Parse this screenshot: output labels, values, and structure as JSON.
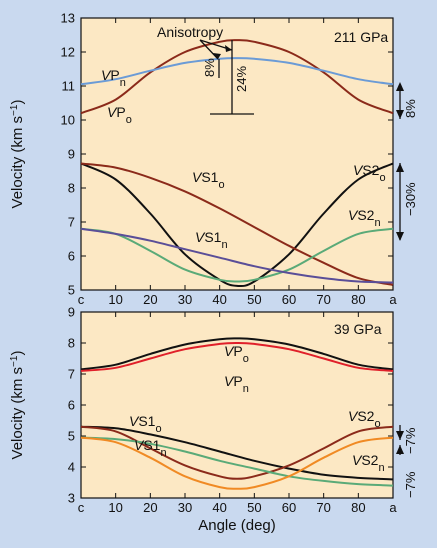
{
  "colors": {
    "figure_bg": "#c9d9ef",
    "plot_bg": "#fce8c4",
    "black": "#111111",
    "darkred": "#8b2a1a",
    "blue": "#6b9bd6",
    "green": "#5aaa78",
    "purple": "#5a4e98",
    "red": "#e0202a",
    "orange": "#f08a24"
  },
  "x_axis": {
    "label": "Angle (deg)",
    "ticks": [
      "c",
      "10",
      "20",
      "30",
      "40",
      "50",
      "60",
      "70",
      "80",
      "a"
    ],
    "tick_values": [
      0,
      10,
      20,
      30,
      40,
      50,
      60,
      70,
      80,
      90
    ]
  },
  "chart_data": [
    {
      "type": "line",
      "title": "211 GPa",
      "xlabel": "",
      "ylabel": "Velocity (km s⁻¹)",
      "xlim": [
        0,
        90
      ],
      "ylim": [
        5,
        13
      ],
      "yticks": [
        "5",
        "6",
        "7",
        "8",
        "9",
        "10",
        "11",
        "12",
        "13"
      ],
      "grid": false,
      "series": [
        {
          "name": "VPo",
          "color": "darkred",
          "x": [
            0,
            10,
            20,
            30,
            40,
            45,
            50,
            60,
            70,
            80,
            90
          ],
          "y": [
            10.2,
            10.6,
            11.4,
            12.0,
            12.3,
            12.35,
            12.3,
            12.0,
            11.4,
            10.6,
            10.2
          ]
        },
        {
          "name": "VPn",
          "color": "blue",
          "x": [
            0,
            10,
            20,
            30,
            40,
            45,
            50,
            60,
            70,
            80,
            90
          ],
          "y": [
            11.05,
            11.2,
            11.45,
            11.68,
            11.8,
            11.82,
            11.8,
            11.68,
            11.45,
            11.2,
            11.05
          ]
        },
        {
          "name": "VS2o",
          "color": "black",
          "x": [
            0,
            10,
            20,
            30,
            40,
            45,
            50,
            60,
            70,
            80,
            90
          ],
          "y": [
            8.72,
            8.25,
            7.25,
            6.05,
            5.3,
            5.12,
            5.25,
            6.05,
            7.25,
            8.25,
            8.72
          ]
        },
        {
          "name": "VS1o",
          "color": "darkred",
          "x": [
            0,
            10,
            20,
            30,
            40,
            50,
            60,
            70,
            80,
            90
          ],
          "y": [
            8.72,
            8.6,
            8.3,
            7.9,
            7.4,
            6.85,
            6.3,
            5.8,
            5.35,
            5.15
          ]
        },
        {
          "name": "VS2n",
          "color": "green",
          "x": [
            0,
            10,
            20,
            30,
            40,
            45,
            50,
            60,
            70,
            80,
            90
          ],
          "y": [
            6.8,
            6.65,
            6.15,
            5.6,
            5.3,
            5.25,
            5.3,
            5.6,
            6.15,
            6.65,
            6.8
          ]
        },
        {
          "name": "VS1n",
          "color": "purple",
          "x": [
            0,
            10,
            20,
            30,
            40,
            50,
            60,
            70,
            80,
            90
          ],
          "y": [
            6.8,
            6.65,
            6.45,
            6.2,
            5.95,
            5.7,
            5.5,
            5.35,
            5.25,
            5.22
          ]
        }
      ],
      "annotations": {
        "pressure": "211 GPa",
        "anisotropy": "Anisotropy",
        "pct_a": "8%",
        "pct_b": "24%",
        "right_top": "8%",
        "right_bottom": "−30%"
      }
    },
    {
      "type": "line",
      "title": "39 GPa",
      "xlabel": "Angle (deg)",
      "ylabel": "Velocity (km s⁻¹)",
      "xlim": [
        0,
        90
      ],
      "ylim": [
        3,
        9
      ],
      "yticks": [
        "3",
        "4",
        "5",
        "6",
        "7",
        "8",
        "9"
      ],
      "grid": false,
      "series": [
        {
          "name": "VPo",
          "color": "black",
          "x": [
            0,
            10,
            20,
            30,
            40,
            45,
            50,
            60,
            70,
            80,
            90
          ],
          "y": [
            7.15,
            7.3,
            7.65,
            7.95,
            8.12,
            8.15,
            8.12,
            7.95,
            7.65,
            7.3,
            7.15
          ]
        },
        {
          "name": "VPn",
          "color": "red",
          "x": [
            0,
            10,
            20,
            30,
            40,
            45,
            50,
            60,
            70,
            80,
            90
          ],
          "y": [
            7.1,
            7.2,
            7.5,
            7.8,
            7.97,
            8.0,
            7.97,
            7.8,
            7.5,
            7.2,
            7.1
          ]
        },
        {
          "name": "VS1o",
          "color": "black",
          "x": [
            0,
            10,
            20,
            30,
            40,
            50,
            60,
            70,
            80,
            90
          ],
          "y": [
            5.3,
            5.25,
            5.05,
            4.8,
            4.5,
            4.2,
            3.95,
            3.75,
            3.65,
            3.6
          ]
        },
        {
          "name": "VS2o",
          "color": "darkred",
          "x": [
            0,
            10,
            20,
            30,
            40,
            45,
            50,
            60,
            70,
            80,
            90
          ],
          "y": [
            5.3,
            5.15,
            4.6,
            4.05,
            3.7,
            3.62,
            3.7,
            4.05,
            4.6,
            5.15,
            5.3
          ]
        },
        {
          "name": "VS1n",
          "color": "green",
          "x": [
            0,
            10,
            20,
            30,
            40,
            50,
            60,
            70,
            80,
            90
          ],
          "y": [
            4.95,
            4.9,
            4.75,
            4.5,
            4.2,
            3.95,
            3.7,
            3.55,
            3.45,
            3.4
          ]
        },
        {
          "name": "VS2n",
          "color": "orange",
          "x": [
            0,
            10,
            20,
            30,
            40,
            45,
            50,
            60,
            70,
            80,
            90
          ],
          "y": [
            4.95,
            4.8,
            4.3,
            3.7,
            3.35,
            3.3,
            3.35,
            3.7,
            4.3,
            4.8,
            4.95
          ]
        }
      ],
      "annotations": {
        "pressure": "39 GPa",
        "right_top": "−7%",
        "right_bottom": "−7%"
      }
    }
  ],
  "labels": {
    "top": {
      "VPn": {
        "main": "V",
        "sub1": "P",
        "sub2": "n"
      },
      "VPo": {
        "main": "V",
        "sub1": "P",
        "sub2": "o"
      },
      "VS1o": {
        "main": "V",
        "sub1": "S1",
        "sub2": "o"
      },
      "VS2o": {
        "main": "V",
        "sub1": "S2",
        "sub2": "o"
      },
      "VS1n": {
        "main": "V",
        "sub1": "S1",
        "sub2": "n"
      },
      "VS2n": {
        "main": "V",
        "sub1": "S2",
        "sub2": "n"
      }
    },
    "bottom": {
      "VPo": {
        "main": "V",
        "sub1": "P",
        "sub2": "o"
      },
      "VPn": {
        "main": "V",
        "sub1": "P",
        "sub2": "n"
      },
      "VS1o": {
        "main": "V",
        "sub1": "S1",
        "sub2": "o"
      },
      "VS1n": {
        "main": "V",
        "sub1": "S1",
        "sub2": "n"
      },
      "VS2o": {
        "main": "V",
        "sub1": "S2",
        "sub2": "o"
      },
      "VS2n": {
        "main": "V",
        "sub1": "S2",
        "sub2": "n"
      }
    }
  }
}
